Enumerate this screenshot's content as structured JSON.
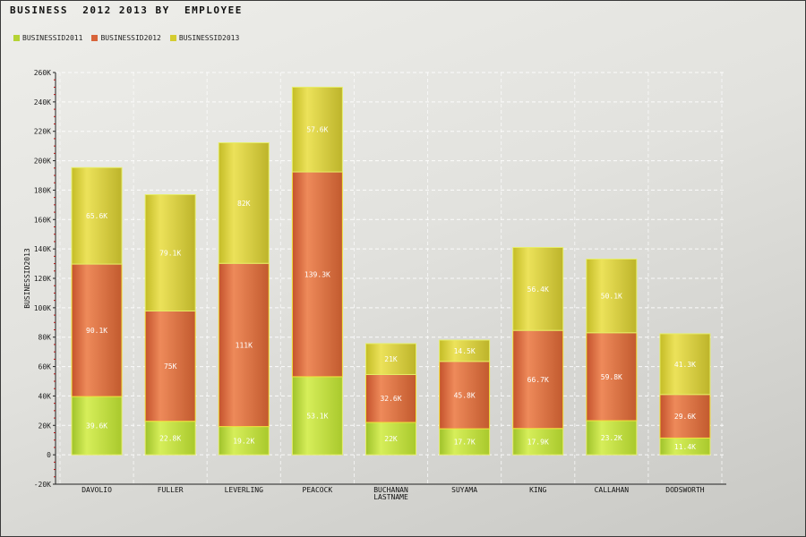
{
  "chart_data": {
    "type": "bar",
    "stacked": true,
    "title": "BUSINESS  2012 2013 BY  EMPLOYEE",
    "xlabel": "",
    "ylabel": "BUSINESSID2013",
    "ylim": [
      -20000,
      260000
    ],
    "yticks": [
      {
        "v": -20000,
        "label": "-20K"
      },
      {
        "v": 0,
        "label": "0"
      },
      {
        "v": 20000,
        "label": "20K"
      },
      {
        "v": 40000,
        "label": "40K"
      },
      {
        "v": 60000,
        "label": "60K"
      },
      {
        "v": 80000,
        "label": "80K"
      },
      {
        "v": 100000,
        "label": "100K"
      },
      {
        "v": 120000,
        "label": "120K"
      },
      {
        "v": 140000,
        "label": "140K"
      },
      {
        "v": 160000,
        "label": "160K"
      },
      {
        "v": 180000,
        "label": "180K"
      },
      {
        "v": 200000,
        "label": "200K"
      },
      {
        "v": 220000,
        "label": "220K"
      },
      {
        "v": 240000,
        "label": "240K"
      },
      {
        "v": 260000,
        "label": "260K"
      }
    ],
    "grid": true,
    "legend_position": "top-left",
    "categories": [
      [
        "DAVOLIO"
      ],
      [
        "FULLER"
      ],
      [
        "LEVERLING"
      ],
      [
        "PEACOCK"
      ],
      [
        "BUCHANAN",
        "LASTNAME"
      ],
      [
        "SUYAMA"
      ],
      [
        "KING"
      ],
      [
        "CALLAHAN"
      ],
      [
        "DODSWORTH"
      ]
    ],
    "series": [
      {
        "name": "BUSINESSID2011",
        "color": "#b5d334",
        "values": [
          39600,
          22800,
          19200,
          53100,
          22000,
          17700,
          17900,
          23200,
          11400
        ],
        "labels": [
          "39.6K",
          "22.8K",
          "19.2K",
          "53.1K",
          "22K",
          "17.7K",
          "17.9K",
          "23.2K",
          "11.4K"
        ]
      },
      {
        "name": "BUSINESSID2012",
        "color": "#d8643a",
        "values": [
          90100,
          75000,
          111000,
          139300,
          32600,
          45800,
          66700,
          59800,
          29600
        ],
        "labels": [
          "90.1K",
          "75K",
          "111K",
          "139.3K",
          "32.6K",
          "45.8K",
          "66.7K",
          "59.8K",
          "29.6K"
        ]
      },
      {
        "name": "BUSINESSID2013",
        "color": "#d4cc30",
        "values": [
          65600,
          79100,
          82000,
          57600,
          21000,
          14500,
          56400,
          50100,
          41300
        ],
        "labels": [
          "65.6K",
          "79.1K",
          "82K",
          "57.6K",
          "21K",
          "14.5K",
          "56.4K",
          "50.1K",
          "41.3K"
        ]
      }
    ]
  }
}
